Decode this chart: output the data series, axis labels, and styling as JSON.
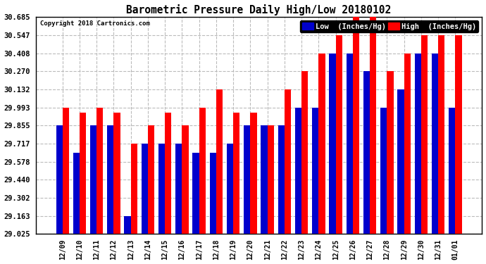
{
  "title": "Barometric Pressure Daily High/Low 20180102",
  "copyright": "Copyright 2018 Cartronics.com",
  "legend_low": "Low  (Inches/Hg)",
  "legend_high": "High  (Inches/Hg)",
  "color_low": "#0000CC",
  "color_high": "#FF0000",
  "background_color": "#FFFFFF",
  "grid_color": "#BBBBBB",
  "ylim": [
    29.025,
    30.685
  ],
  "yticks": [
    29.025,
    29.163,
    29.302,
    29.44,
    29.578,
    29.717,
    29.855,
    29.993,
    30.132,
    30.27,
    30.408,
    30.547,
    30.685
  ],
  "categories": [
    "12/09",
    "12/10",
    "12/11",
    "12/12",
    "12/13",
    "12/14",
    "12/15",
    "12/16",
    "12/17",
    "12/18",
    "12/19",
    "12/20",
    "12/21",
    "12/22",
    "12/23",
    "12/24",
    "12/25",
    "12/26",
    "12/27",
    "12/28",
    "12/29",
    "12/30",
    "12/31",
    "01/01"
  ],
  "low_values": [
    29.855,
    29.648,
    29.855,
    29.855,
    29.163,
    29.717,
    29.717,
    29.717,
    29.648,
    29.648,
    29.717,
    29.855,
    29.855,
    29.855,
    29.993,
    29.993,
    30.408,
    30.408,
    30.27,
    29.993,
    30.132,
    30.408,
    30.408,
    29.993
  ],
  "high_values": [
    29.993,
    29.955,
    29.993,
    29.955,
    29.717,
    29.855,
    29.955,
    29.855,
    29.993,
    30.132,
    29.955,
    29.955,
    29.855,
    30.132,
    30.27,
    30.408,
    30.547,
    30.685,
    30.685,
    30.27,
    30.408,
    30.547,
    30.547,
    30.547
  ]
}
